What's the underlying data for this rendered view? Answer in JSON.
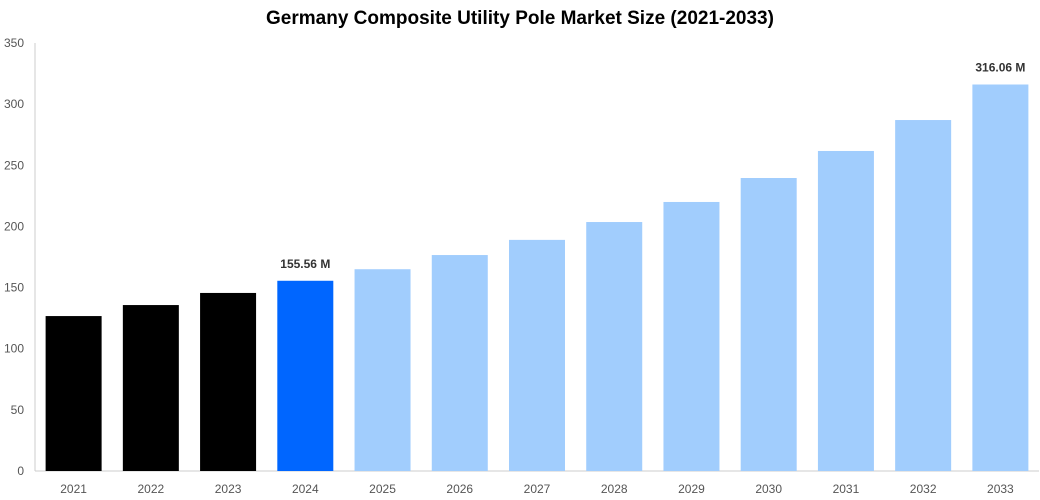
{
  "chart_data": {
    "type": "bar",
    "title": "Germany Composite Utility Pole Market Size (2021-2033)",
    "xlabel": "",
    "ylabel": "",
    "categories": [
      "2021",
      "2022",
      "2023",
      "2024",
      "2025",
      "2026",
      "2027",
      "2028",
      "2029",
      "2030",
      "2031",
      "2032",
      "2033"
    ],
    "values": [
      126.7,
      135.7,
      145.6,
      155.56,
      165.0,
      176.6,
      189.0,
      203.6,
      220.0,
      239.6,
      261.7,
      287.0,
      316.06
    ],
    "bar_colors": [
      "#000000",
      "#000000",
      "#000000",
      "#0066ff",
      "#a1cdfd",
      "#a1cdfd",
      "#a1cdfd",
      "#a1cdfd",
      "#a1cdfd",
      "#a1cdfd",
      "#a1cdfd",
      "#a1cdfd",
      "#a1cdfd"
    ],
    "data_labels": {
      "3": "155.56 M",
      "12": "316.06 M"
    },
    "ylim": [
      0,
      350
    ],
    "yticks": [
      0,
      50,
      100,
      150,
      200,
      250,
      300,
      350
    ],
    "grid": false,
    "legend": "none"
  }
}
